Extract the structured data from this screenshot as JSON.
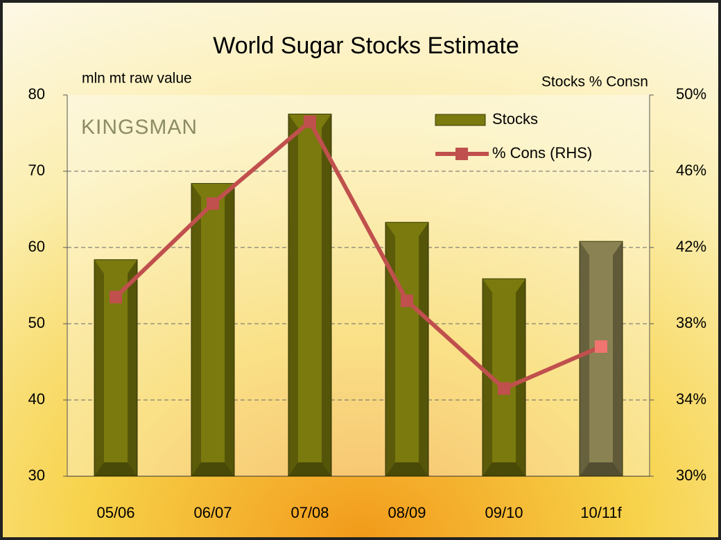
{
  "chart_data": {
    "type": "bar-line",
    "title": "World Sugar Stocks Estimate",
    "ylabel": "mln mt raw value",
    "y2label": "Stocks % Consn",
    "logo": "KINGSMAN",
    "categories": [
      "05/06",
      "06/07",
      "07/08",
      "08/09",
      "09/10",
      "10/11f"
    ],
    "series": [
      {
        "name": "Stocks",
        "type": "bar",
        "color": "#7a7a0e",
        "colors": [
          "#7a7a0e",
          "#7a7a0e",
          "#7a7a0e",
          "#7a7a0e",
          "#7a7a0e",
          "#8a8252"
        ],
        "values": [
          58.4,
          68.4,
          77.5,
          63.3,
          55.9,
          60.8
        ]
      },
      {
        "name": "% Cons (RHS)",
        "type": "line",
        "axis": "y2",
        "color": "#c0504d",
        "colors": [
          "#c0504d",
          "#c0504d",
          "#c0504d",
          "#c0504d",
          "#c0504d",
          "#f07470"
        ],
        "values": [
          39.4,
          44.3,
          48.6,
          39.2,
          34.6,
          36.8
        ]
      }
    ],
    "ylim": [
      30,
      80
    ],
    "yticks": [
      30,
      40,
      50,
      60,
      70,
      80
    ],
    "y2lim": [
      30,
      50
    ],
    "y2ticks": [
      {
        "value": 30,
        "label": "30%"
      },
      {
        "value": 34,
        "label": "34%"
      },
      {
        "value": 38,
        "label": "38%"
      },
      {
        "value": 42,
        "label": "42%"
      },
      {
        "value": 46,
        "label": "46%"
      },
      {
        "value": 50,
        "label": "50%"
      }
    ],
    "grid": true,
    "legend": "upper right"
  }
}
